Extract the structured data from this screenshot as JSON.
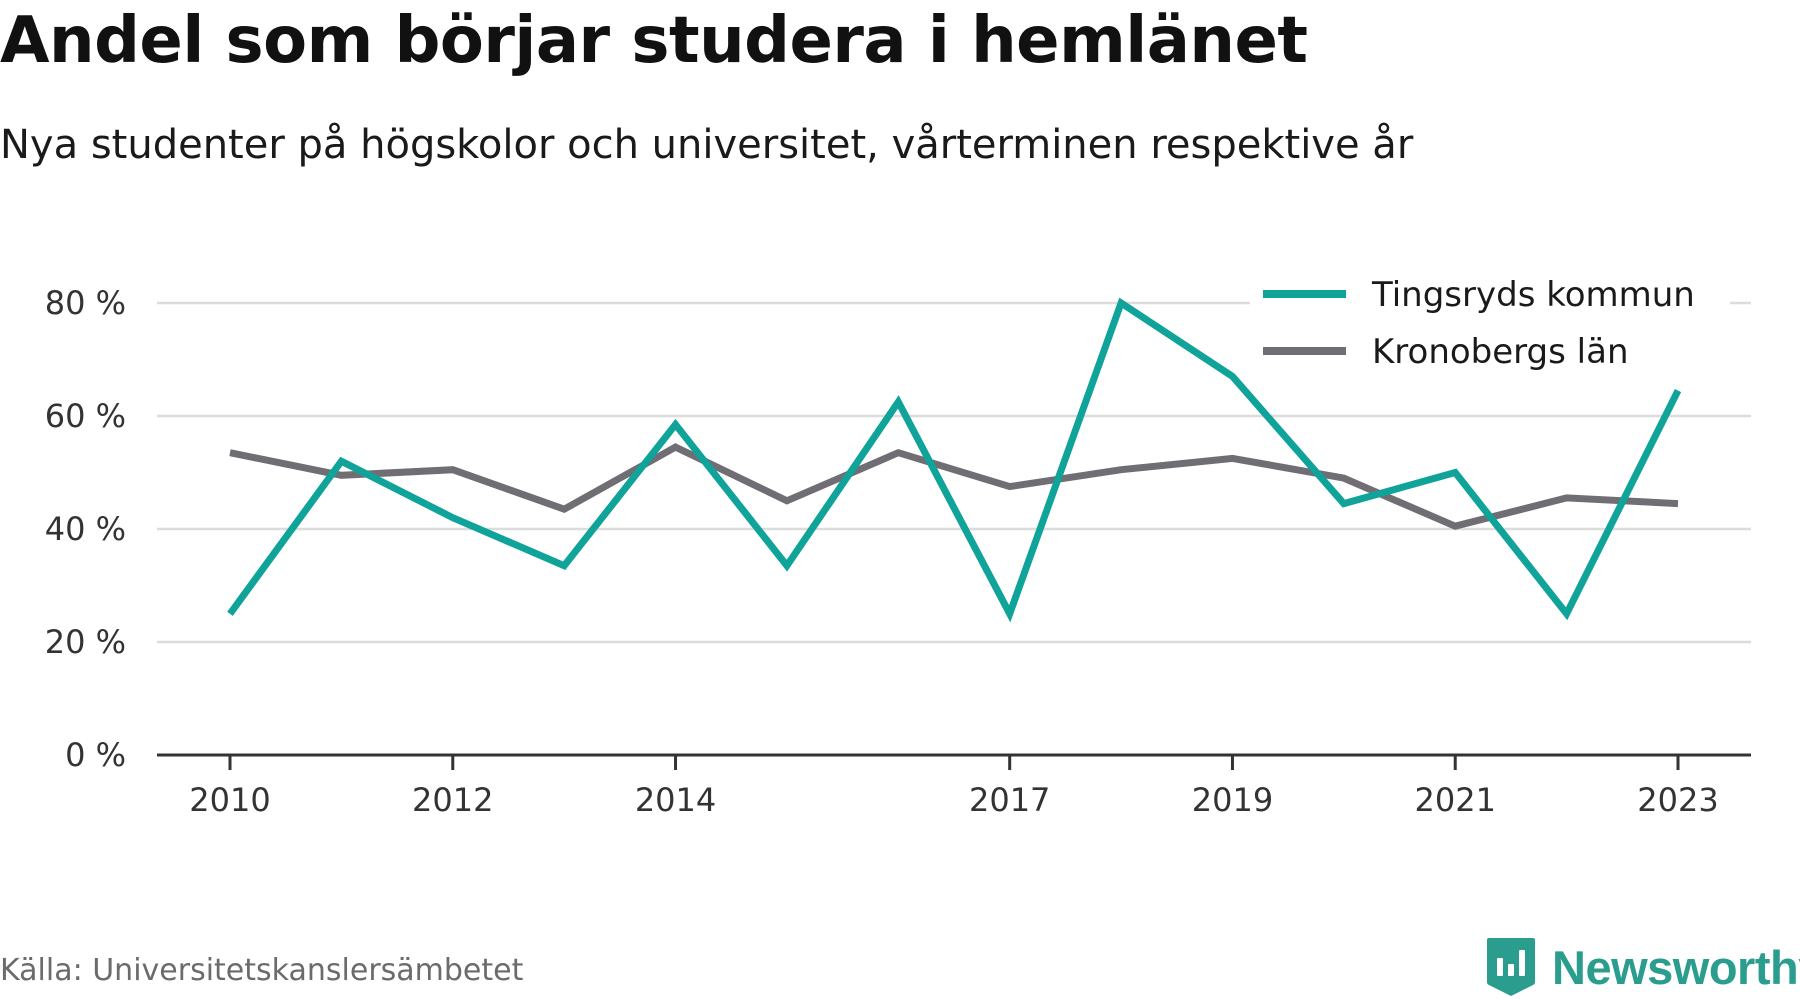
{
  "title": "Andel som börjar studera i hemlänet",
  "subtitle": "Nya studenter på högskolor och universitet, vårterminen respektive år",
  "source": "Källa: Universitetskanslersämbetet",
  "brand": {
    "name": "Newsworthy",
    "icon": "newsworthy-logo-icon",
    "color": "#2a9d8f"
  },
  "chart_data": {
    "type": "line",
    "title": "Andel som börjar studera i hemlänet",
    "subtitle": "Nya studenter på högskolor och universitet, vårterminen respektive år",
    "x": [
      2010,
      2011,
      2012,
      2013,
      2014,
      2015,
      2016,
      2017,
      2018,
      2019,
      2020,
      2021,
      2022,
      2023
    ],
    "x_tick_values": [
      2010,
      2012,
      2014,
      2017,
      2019,
      2021,
      2023
    ],
    "x_tick_labels": [
      "2010",
      "2012",
      "2014",
      "2017",
      "2019",
      "2021",
      "2023"
    ],
    "ylim": [
      0,
      85
    ],
    "y_ticks": [
      0,
      20,
      40,
      60,
      80
    ],
    "y_tick_labels": [
      "0 %",
      "20 %",
      "40 %",
      "60 %",
      "80 %"
    ],
    "grid": true,
    "legend_position": "top-right",
    "series": [
      {
        "name": "Tingsryds kommun",
        "color": "#0fa39a",
        "values": [
          25,
          52,
          42,
          33.5,
          58.5,
          33.5,
          62.5,
          25,
          80,
          67,
          44.5,
          50,
          25,
          64.5
        ]
      },
      {
        "name": "Kronobergs län",
        "color": "#706e74",
        "values": [
          53.5,
          49.5,
          50.5,
          43.5,
          54.5,
          45,
          53.5,
          47.5,
          50.5,
          52.5,
          49,
          40.5,
          45.5,
          44.5
        ]
      }
    ]
  }
}
